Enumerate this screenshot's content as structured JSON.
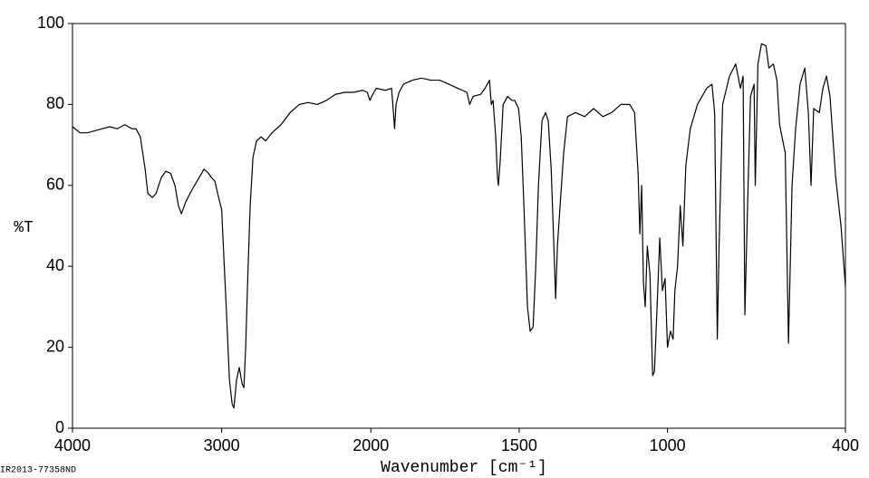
{
  "chart_data": {
    "type": "line",
    "ylabel": "%T",
    "xlabel": "Wavenumber [cm⁻¹]",
    "footnote": "IR2013-77358ND",
    "color": "#000000",
    "xlim": [
      4000,
      400
    ],
    "ylim": [
      0,
      100
    ],
    "x_scale_break": 2000,
    "xticks": [
      4000,
      3000,
      2000,
      1500,
      1000,
      400
    ],
    "yticks": [
      0,
      20,
      40,
      60,
      80,
      100
    ],
    "x": [
      4000,
      3950,
      3900,
      3850,
      3800,
      3750,
      3700,
      3650,
      3600,
      3575,
      3545,
      3513,
      3495,
      3465,
      3440,
      3404,
      3374,
      3343,
      3313,
      3290,
      3270,
      3240,
      3198,
      3150,
      3118,
      3088,
      3070,
      3045,
      3027,
      3000,
      2985,
      2967,
      2948,
      2930,
      2918,
      2900,
      2882,
      2863,
      2851,
      2839,
      2827,
      2809,
      2790,
      2766,
      2736,
      2705,
      2663,
      2602,
      2541,
      2480,
      2420,
      2359,
      2298,
      2237,
      2176,
      2116,
      2055,
      2024,
      2006,
      1997,
      1982,
      1951,
      1930,
      1920,
      1915,
      1905,
      1890,
      1860,
      1829,
      1798,
      1768,
      1737,
      1707,
      1676,
      1667,
      1655,
      1630,
      1615,
      1600,
      1594,
      1588,
      1579,
      1573,
      1570,
      1564,
      1554,
      1539,
      1524,
      1515,
      1502,
      1493,
      1484,
      1472,
      1463,
      1453,
      1444,
      1435,
      1423,
      1411,
      1402,
      1392,
      1383,
      1377,
      1371,
      1362,
      1350,
      1337,
      1310,
      1279,
      1249,
      1218,
      1188,
      1157,
      1127,
      1111,
      1099,
      1093,
      1087,
      1081,
      1075,
      1068,
      1059,
      1050,
      1044,
      1035,
      1026,
      1017,
      1008,
      1000,
      990,
      981,
      975,
      966,
      957,
      948,
      938,
      923,
      899,
      868,
      850,
      841,
      832,
      826,
      814,
      791,
      770,
      754,
      745,
      739,
      730,
      720,
      708,
      704,
      695,
      683,
      668,
      658,
      643,
      631,
      622,
      603,
      592,
      580,
      568,
      553,
      537,
      525,
      516,
      507,
      488,
      476,
      464,
      452,
      433,
      415,
      400
    ],
    "values": [
      74.5,
      73,
      73,
      73.5,
      74,
      74.5,
      74,
      75,
      74,
      74,
      72,
      64,
      58,
      57,
      58,
      62,
      63.5,
      63,
      60,
      55,
      53,
      56,
      59,
      62,
      64,
      63,
      62,
      61,
      58,
      54,
      42,
      28,
      12,
      6,
      5,
      12,
      15,
      11,
      10,
      20,
      35,
      55,
      67,
      71,
      72,
      71,
      73,
      75,
      78,
      80,
      80.5,
      80,
      81,
      82.5,
      83,
      83,
      83.5,
      83,
      81,
      82,
      84,
      83.5,
      84,
      74,
      80,
      83,
      85,
      86,
      86.5,
      86,
      86,
      85,
      84,
      83,
      80,
      82,
      82.5,
      84,
      86,
      80,
      81,
      72,
      62,
      60,
      66,
      80,
      82,
      81,
      81,
      79,
      72,
      55,
      30,
      24,
      25,
      40,
      60,
      76,
      78,
      76,
      64,
      45,
      32,
      45,
      55,
      68,
      77,
      78,
      77,
      79,
      77,
      78,
      80,
      80,
      78,
      63,
      48,
      60,
      36,
      30,
      45,
      38,
      13,
      14,
      30,
      47,
      34,
      37,
      20,
      24,
      22,
      34,
      40,
      55,
      45,
      65,
      74,
      80,
      84,
      85,
      78,
      22,
      45,
      80,
      87,
      90,
      84,
      87,
      28,
      55,
      82,
      85,
      60,
      90,
      95,
      94.5,
      89,
      90,
      86,
      75,
      68,
      21,
      60,
      74,
      85,
      89,
      78,
      60,
      79,
      78,
      84,
      87,
      82,
      62,
      50,
      35
    ]
  }
}
